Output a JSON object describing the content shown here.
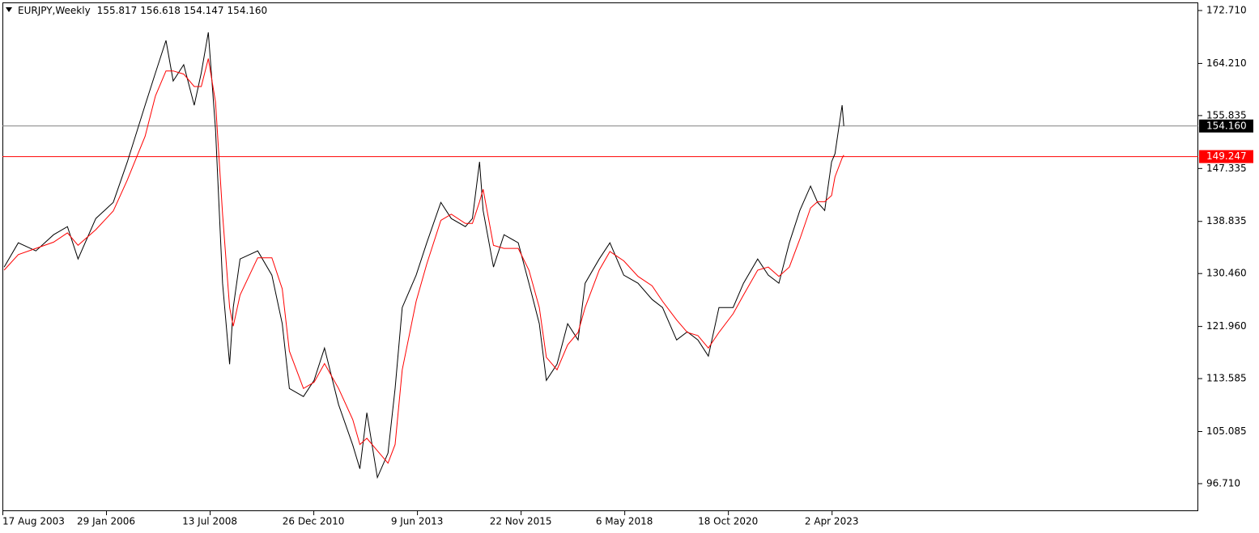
{
  "chart_data": {
    "type": "line",
    "title": "EURJPY,Weekly",
    "ohlc": [
      "155.817",
      "156.618",
      "154.147",
      "154.160"
    ],
    "xlim": [
      "2003-08-17",
      "2031-12-05"
    ],
    "xticks": [
      {
        "value": "2003-08-17",
        "label": "17 Aug 2003"
      },
      {
        "value": "2006-01-29",
        "label": "29 Jan 2006"
      },
      {
        "value": "2008-07-13",
        "label": "13 Jul 2008"
      },
      {
        "value": "2010-12-26",
        "label": "26 Dec 2010"
      },
      {
        "value": "2013-06-09",
        "label": "9 Jun 2013"
      },
      {
        "value": "2015-11-22",
        "label": "22 Nov 2015"
      },
      {
        "value": "2018-05-06",
        "label": "6 May 2018"
      },
      {
        "value": "2020-10-18",
        "label": "18 Oct 2020"
      },
      {
        "value": "2023-04-02",
        "label": "2 Apr 2023"
      }
    ],
    "ylim": [
      92.29,
      174.01
    ],
    "yticks": [
      {
        "value": 172.71,
        "label": "172.710"
      },
      {
        "value": 164.21,
        "label": "164.210"
      },
      {
        "value": 155.835,
        "label": "155.835"
      },
      {
        "value": 147.335,
        "label": "147.335"
      },
      {
        "value": 138.835,
        "label": "138.835"
      },
      {
        "value": 130.46,
        "label": "130.460"
      },
      {
        "value": 121.96,
        "label": "121.960"
      },
      {
        "value": 113.585,
        "label": "113.585"
      },
      {
        "value": 105.085,
        "label": "105.085"
      },
      {
        "value": 96.71,
        "label": "96.710"
      }
    ],
    "levels": [
      {
        "value": 154.16,
        "label": "154.160",
        "color": "#808080",
        "box": "#000000"
      },
      {
        "value": 149.247,
        "label": "149.247",
        "color": "#ff0000",
        "box": "#ff0000"
      }
    ],
    "x": [
      "2003-09-01",
      "2004-01-01",
      "2004-06-01",
      "2004-11-01",
      "2005-03-01",
      "2005-06-01",
      "2005-11-01",
      "2006-04-01",
      "2006-08-01",
      "2007-01-01",
      "2007-04-01",
      "2007-07-01",
      "2007-09-01",
      "2007-12-01",
      "2008-03-01",
      "2008-05-01",
      "2008-07-01",
      "2008-09-01",
      "2008-11-01",
      "2009-01-01",
      "2009-02-01",
      "2009-04-01",
      "2009-09-01",
      "2010-01-01",
      "2010-04-01",
      "2010-06-01",
      "2010-10-01",
      "2011-01-01",
      "2011-04-01",
      "2011-08-01",
      "2011-12-01",
      "2012-02-01",
      "2012-04-01",
      "2012-07-01",
      "2012-10-01",
      "2012-12-01",
      "2013-02-01",
      "2013-06-01",
      "2013-09-01",
      "2014-01-01",
      "2014-04-01",
      "2014-08-01",
      "2014-10-01",
      "2014-12-01",
      "2015-01-01",
      "2015-04-01",
      "2015-07-01",
      "2015-11-01",
      "2016-02-01",
      "2016-05-01",
      "2016-07-01",
      "2016-10-01",
      "2017-01-01",
      "2017-04-01",
      "2017-06-01",
      "2017-10-01",
      "2018-01-01",
      "2018-05-01",
      "2018-09-01",
      "2019-01-01",
      "2019-04-01",
      "2019-08-01",
      "2019-11-01",
      "2020-02-01",
      "2020-05-01",
      "2020-08-01",
      "2020-12-01",
      "2021-03-01",
      "2021-07-01",
      "2021-10-01",
      "2022-01-01",
      "2022-04-01",
      "2022-07-01",
      "2022-10-01",
      "2022-12-01",
      "2023-02-01",
      "2023-04-01",
      "2023-05-01",
      "2023-07-01",
      "2023-07-16"
    ],
    "series": [
      {
        "color": "#000000",
        "values": [
          131.5,
          135.4,
          134.1,
          136.7,
          138.0,
          132.8,
          139.3,
          141.9,
          148.4,
          157.5,
          162.7,
          167.9,
          161.4,
          164.0,
          157.5,
          162.7,
          169.2,
          153.6,
          128.9,
          115.9,
          125.0,
          132.8,
          134.1,
          130.2,
          122.4,
          112.0,
          110.7,
          113.3,
          118.5,
          109.4,
          102.9,
          99.1,
          108.1,
          97.7,
          101.6,
          112.0,
          125.0,
          130.2,
          135.4,
          141.9,
          139.3,
          138.0,
          139.3,
          148.4,
          140.6,
          131.5,
          136.7,
          135.4,
          128.9,
          122.4,
          113.3,
          115.9,
          122.4,
          119.8,
          128.9,
          132.8,
          135.4,
          130.2,
          128.9,
          126.3,
          125.0,
          119.8,
          121.1,
          119.8,
          117.2,
          125.0,
          125.0,
          128.9,
          132.8,
          130.2,
          128.9,
          135.4,
          140.6,
          144.5,
          141.9,
          140.6,
          148.4,
          149.7,
          157.5,
          154.16
        ]
      },
      {
        "color": "#ff0000",
        "values": [
          131.0,
          133.5,
          134.5,
          135.5,
          137.0,
          135.0,
          137.5,
          140.5,
          145.5,
          152.5,
          159.0,
          163.0,
          163.0,
          162.5,
          160.5,
          160.5,
          165.0,
          158.0,
          140.0,
          125.0,
          122.0,
          127.0,
          133.0,
          133.0,
          128.0,
          118.0,
          112.0,
          113.0,
          116.0,
          112.0,
          107.0,
          103.0,
          104.0,
          102.0,
          100.0,
          103.0,
          115.0,
          126.0,
          132.0,
          139.0,
          140.0,
          138.5,
          138.5,
          142.0,
          144.0,
          135.0,
          134.5,
          134.5,
          131.0,
          125.0,
          117.0,
          115.0,
          119.0,
          121.0,
          125.0,
          131.0,
          134.0,
          132.5,
          130.0,
          128.5,
          126.0,
          123.0,
          121.0,
          120.5,
          118.5,
          121.0,
          124.0,
          127.0,
          131.0,
          131.5,
          130.0,
          131.5,
          136.0,
          141.0,
          142.0,
          142.0,
          143.0,
          146.0,
          149.0,
          149.5
        ]
      }
    ]
  }
}
